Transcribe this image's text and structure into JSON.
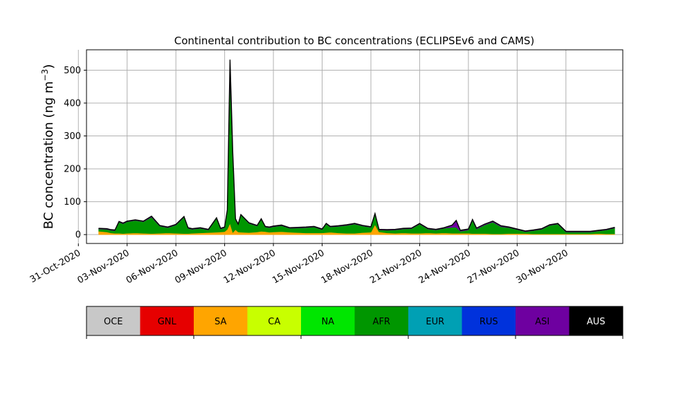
{
  "chart_data": {
    "type": "area",
    "stacked": true,
    "title": "Continental contribution to BC concentrations (ECLIPSEv6 and CAMS)",
    "ylabel": "BC concentration (ng m",
    "ylabel_sup": "−3",
    "ylabel_close": ")",
    "xlabel": "",
    "ylim": [
      -27,
      562
    ],
    "xlim": [
      "2020-10-31T12:00",
      "2020-12-03T12:00"
    ],
    "x_ticks": [
      "31-Oct-2020",
      "03-Nov-2020",
      "06-Nov-2020",
      "09-Nov-2020",
      "12-Nov-2020",
      "15-Nov-2020",
      "18-Nov-2020",
      "21-Nov-2020",
      "24-Nov-2020",
      "27-Nov-2020",
      "30-Nov-2020"
    ],
    "y_ticks": [
      0,
      100,
      200,
      300,
      400,
      500
    ],
    "grid": true,
    "legend": {
      "placement": "colorbar-below",
      "entries": [
        {
          "name": "OCE",
          "color": "#c8c8c8",
          "text_color": "#000000"
        },
        {
          "name": "GNL",
          "color": "#e60000",
          "text_color": "#000000"
        },
        {
          "name": "SA",
          "color": "#ffa500",
          "text_color": "#000000"
        },
        {
          "name": "CA",
          "color": "#c8ff00",
          "text_color": "#000000"
        },
        {
          "name": "NA",
          "color": "#00e600",
          "text_color": "#000000"
        },
        {
          "name": "AFR",
          "color": "#009600",
          "text_color": "#000000"
        },
        {
          "name": "EUR",
          "color": "#00a0b4",
          "text_color": "#000000"
        },
        {
          "name": "RUS",
          "color": "#0032dc",
          "text_color": "#000000"
        },
        {
          "name": "ASI",
          "color": "#6e00a0",
          "text_color": "#000000"
        },
        {
          "name": "AUS",
          "color": "#000000",
          "text_color": "#ffffff"
        }
      ]
    },
    "x": [
      "2020-11-01T06:00",
      "2020-11-01T18:00",
      "2020-11-02T00:00",
      "2020-11-02T06:00",
      "2020-11-02T12:00",
      "2020-11-02T18:00",
      "2020-11-03T00:00",
      "2020-11-03T12:00",
      "2020-11-04T00:00",
      "2020-11-04T12:00",
      "2020-11-05T00:00",
      "2020-11-05T12:00",
      "2020-11-06T00:00",
      "2020-11-06T12:00",
      "2020-11-06T18:00",
      "2020-11-07T00:00",
      "2020-11-07T12:00",
      "2020-11-08T00:00",
      "2020-11-08T12:00",
      "2020-11-08T18:00",
      "2020-11-09T00:00",
      "2020-11-09T04:00",
      "2020-11-09T08:00",
      "2020-11-09T12:00",
      "2020-11-09T16:00",
      "2020-11-09T20:00",
      "2020-11-10T00:00",
      "2020-11-10T12:00",
      "2020-11-11T00:00",
      "2020-11-11T06:00",
      "2020-11-11T12:00",
      "2020-11-11T18:00",
      "2020-11-12T00:00",
      "2020-11-12T12:00",
      "2020-11-13T00:00",
      "2020-11-13T12:00",
      "2020-11-14T00:00",
      "2020-11-14T12:00",
      "2020-11-15T00:00",
      "2020-11-15T06:00",
      "2020-11-15T12:00",
      "2020-11-16T00:00",
      "2020-11-16T12:00",
      "2020-11-17T00:00",
      "2020-11-17T12:00",
      "2020-11-18T00:00",
      "2020-11-18T06:00",
      "2020-11-18T12:00",
      "2020-11-19T00:00",
      "2020-11-19T12:00",
      "2020-11-20T00:00",
      "2020-11-20T12:00",
      "2020-11-21T00:00",
      "2020-11-21T12:00",
      "2020-11-22T00:00",
      "2020-11-22T12:00",
      "2020-11-23T00:00",
      "2020-11-23T06:00",
      "2020-11-23T12:00",
      "2020-11-24T00:00",
      "2020-11-24T06:00",
      "2020-11-24T12:00",
      "2020-11-25T00:00",
      "2020-11-25T12:00",
      "2020-11-26T00:00",
      "2020-11-26T12:00",
      "2020-11-27T00:00",
      "2020-11-27T12:00",
      "2020-11-28T00:00",
      "2020-11-28T12:00",
      "2020-11-29T00:00",
      "2020-11-29T12:00",
      "2020-11-30T00:00",
      "2020-11-30T12:00",
      "2020-12-01T00:00",
      "2020-12-01T12:00",
      "2020-12-02T00:00",
      "2020-12-02T12:00",
      "2020-12-03T00:00"
    ],
    "series": [
      {
        "name": "SA",
        "color": "#ffa500",
        "values": [
          10,
          8,
          5,
          4,
          4,
          3,
          4,
          5,
          4,
          3,
          4,
          5,
          4,
          3,
          3,
          4,
          5,
          6,
          7,
          8,
          9,
          16,
          34,
          6,
          15,
          8,
          7,
          6,
          8,
          10,
          9,
          7,
          8,
          9,
          7,
          6,
          5,
          5,
          5,
          6,
          7,
          5,
          4,
          4,
          6,
          7,
          30,
          8,
          5,
          4,
          5,
          4,
          4,
          5,
          4,
          5,
          4,
          4,
          4,
          4,
          3,
          3,
          3,
          2,
          2,
          3,
          3,
          3,
          2,
          2,
          2,
          2,
          2,
          2,
          2,
          2,
          3,
          2,
          2
        ]
      },
      {
        "name": "AFR",
        "color": "#009600",
        "values": [
          7,
          8,
          8,
          8,
          34,
          30,
          35,
          38,
          35,
          50,
          22,
          16,
          25,
          50,
          16,
          12,
          14,
          8,
          42,
          9,
          12,
          54,
          440,
          225,
          30,
          22,
          52,
          28,
          18,
          36,
          14,
          14,
          16,
          18,
          12,
          14,
          16,
          18,
          10,
          26,
          16,
          20,
          24,
          28,
          20,
          15,
          31,
          6,
          8,
          10,
          12,
          14,
          28,
          12,
          10,
          14,
          18,
          18,
          6,
          10,
          40,
          14,
          26,
          36,
          22,
          18,
          12,
          6,
          10,
          14,
          26,
          30,
          6,
          6,
          6,
          6,
          8,
          12,
          18
        ]
      },
      {
        "name": "ASI",
        "color": "#6e00a0",
        "values": [
          1,
          1,
          1,
          1,
          1,
          1,
          1,
          1,
          1,
          2,
          1,
          1,
          1,
          1,
          1,
          1,
          1,
          1,
          1,
          1,
          1,
          2,
          6,
          3,
          1,
          1,
          1,
          1,
          1,
          1,
          1,
          1,
          1,
          1,
          1,
          1,
          1,
          1,
          1,
          1,
          1,
          1,
          1,
          1,
          1,
          1,
          1,
          1,
          1,
          1,
          1,
          1,
          1,
          1,
          1,
          1,
          6,
          20,
          2,
          2,
          2,
          2,
          2,
          2,
          2,
          1,
          1,
          1,
          1,
          1,
          1,
          1,
          1,
          1,
          1,
          1,
          1,
          1,
          1
        ]
      },
      {
        "name": "AUS",
        "color": "#000000",
        "values": [
          1,
          1,
          1,
          1,
          1,
          1,
          1,
          1,
          1,
          1,
          1,
          1,
          1,
          1,
          1,
          1,
          1,
          1,
          1,
          1,
          1,
          3,
          52,
          14,
          2,
          1,
          1,
          1,
          1,
          1,
          1,
          1,
          1,
          1,
          1,
          1,
          1,
          1,
          1,
          1,
          1,
          1,
          1,
          1,
          1,
          1,
          2,
          1,
          1,
          1,
          1,
          1,
          1,
          1,
          1,
          1,
          1,
          1,
          1,
          1,
          1,
          1,
          1,
          1,
          1,
          1,
          1,
          1,
          1,
          1,
          1,
          1,
          1,
          1,
          1,
          1,
          1,
          1,
          1
        ]
      }
    ]
  }
}
